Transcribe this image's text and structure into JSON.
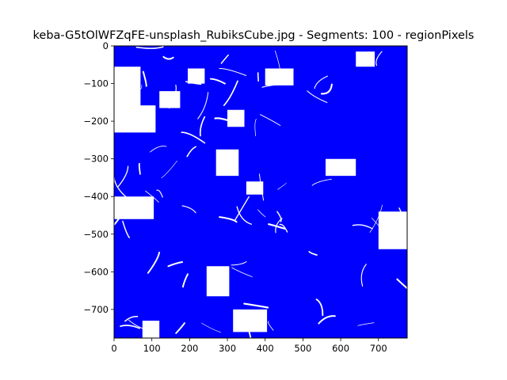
{
  "chart_data": {
    "type": "scatter",
    "title": "keba-G5tOlWFZqFE-unsplash_RubiksCube.jpg - Segments: 100 - regionPixels",
    "xlabel": "",
    "ylabel": "",
    "xlim": [
      0,
      776
    ],
    "ylim": [
      -776,
      0
    ],
    "x_ticks": [
      0,
      100,
      200,
      300,
      400,
      500,
      600,
      700
    ],
    "y_ticks": [
      0,
      -100,
      -200,
      -300,
      -400,
      -500,
      -600,
      -700
    ],
    "series_color": "#0000ff",
    "grid": false,
    "blank_regions": [
      {
        "x": [
          0,
          70,
          70,
          0
        ],
        "y": [
          -55,
          -55,
          -160,
          -160
        ]
      },
      {
        "x": [
          0,
          110,
          110,
          0
        ],
        "y": [
          -158,
          -158,
          -230,
          -230
        ]
      },
      {
        "x": [
          0,
          105,
          105,
          0
        ],
        "y": [
          -400,
          -400,
          -460,
          -460
        ]
      },
      {
        "x": [
          120,
          175,
          175,
          120
        ],
        "y": [
          -120,
          -120,
          -165,
          -165
        ]
      },
      {
        "x": [
          195,
          240,
          240,
          195
        ],
        "y": [
          -60,
          -60,
          -100,
          -100
        ]
      },
      {
        "x": [
          270,
          330,
          330,
          270
        ],
        "y": [
          -275,
          -275,
          -345,
          -345
        ]
      },
      {
        "x": [
          300,
          345,
          345,
          300
        ],
        "y": [
          -170,
          -170,
          -215,
          -215
        ]
      },
      {
        "x": [
          245,
          305,
          305,
          245
        ],
        "y": [
          -585,
          -585,
          -665,
          -665
        ]
      },
      {
        "x": [
          315,
          405,
          405,
          315
        ],
        "y": [
          -700,
          -700,
          -760,
          -760
        ]
      },
      {
        "x": [
          700,
          776,
          776,
          700
        ],
        "y": [
          -440,
          -440,
          -540,
          -540
        ]
      },
      {
        "x": [
          75,
          120,
          120,
          75
        ],
        "y": [
          -730,
          -730,
          -776,
          -776
        ]
      },
      {
        "x": [
          560,
          640,
          640,
          560
        ],
        "y": [
          -300,
          -300,
          -345,
          -345
        ]
      },
      {
        "x": [
          400,
          475,
          475,
          400
        ],
        "y": [
          -60,
          -60,
          -105,
          -105
        ]
      },
      {
        "x": [
          640,
          690,
          690,
          640
        ],
        "y": [
          -15,
          -15,
          -55,
          -55
        ]
      },
      {
        "x": [
          350,
          395,
          395,
          350
        ],
        "y": [
          -360,
          -360,
          -395,
          -395
        ]
      }
    ]
  }
}
